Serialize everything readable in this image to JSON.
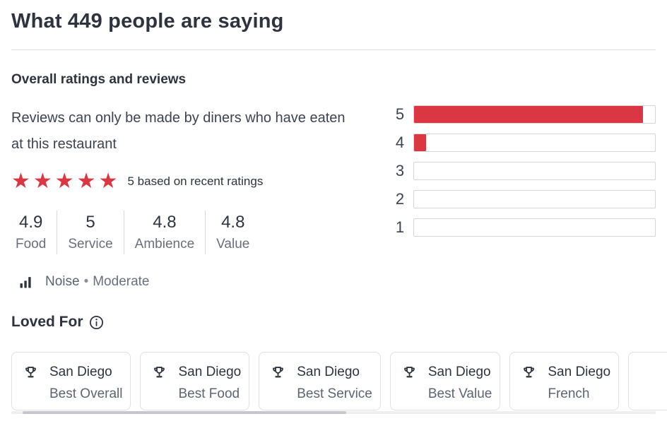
{
  "colors": {
    "accent_red": "#da3743",
    "text_dark": "#2d333f",
    "text_gray": "#6a6f7b",
    "border": "#e1e1e3"
  },
  "header": {
    "title": "What 449 people are saying"
  },
  "overall": {
    "heading": "Overall ratings and reviews",
    "note": "Reviews can only be made by diners who have eaten at this restaurant",
    "stars": "★★★★★",
    "stars_caption": "5 based on recent ratings",
    "ratings": [
      {
        "value": "4.9",
        "label": "Food"
      },
      {
        "value": "5",
        "label": "Service"
      },
      {
        "value": "4.8",
        "label": "Ambience"
      },
      {
        "value": "4.8",
        "label": "Value"
      }
    ],
    "noise": {
      "label": "Noise",
      "separator": "•",
      "value": "Moderate"
    }
  },
  "chart_data": {
    "type": "bar",
    "orientation": "horizontal",
    "categories": [
      "5",
      "4",
      "3",
      "2",
      "1"
    ],
    "values_percent": [
      95,
      5,
      0,
      0,
      0
    ],
    "bar_color": "#da3743",
    "xlim": [
      0,
      100
    ],
    "grid": false,
    "legend": false
  },
  "loved_for": {
    "heading": "Loved For",
    "cards": [
      {
        "city": "San Diego",
        "category": "Best Overall"
      },
      {
        "city": "San Diego",
        "category": "Best Food"
      },
      {
        "city": "San Diego",
        "category": "Best Service"
      },
      {
        "city": "San Diego",
        "category": "Best Value"
      },
      {
        "city": "San Diego",
        "category": "French"
      }
    ]
  }
}
